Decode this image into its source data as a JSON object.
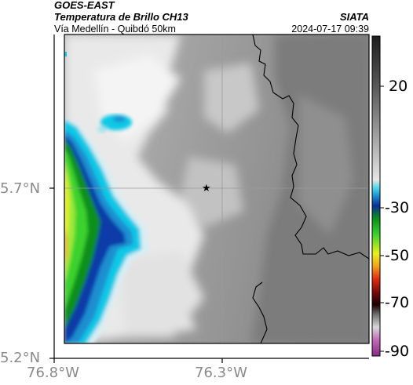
{
  "header": {
    "satellite": "GOES-EAST",
    "product": "Temperatura de Brillo CH13",
    "region": "Vía Medellín - Quibdó 50km",
    "agency": "SIATA",
    "timestamp": "2024-07-17 09:39"
  },
  "map": {
    "lat_labels": [
      "5.7°N",
      "5.2°N"
    ],
    "lon_labels": [
      "76.8°W",
      "76.3°W"
    ],
    "marker": "★",
    "colors": {
      "cold_cloud_blue": "#0a3aa8",
      "cloud_cyan": "#11c9e6",
      "cloud_green": "#14c214",
      "cloud_yellow": "#f0e81c",
      "ground_gray": "#8c8c8c",
      "border_line": "#000000",
      "grid_line": "#9a9a9a"
    }
  },
  "colorbar": {
    "ticks": [
      "20",
      "-30",
      "-50",
      "-70",
      "-90"
    ]
  }
}
